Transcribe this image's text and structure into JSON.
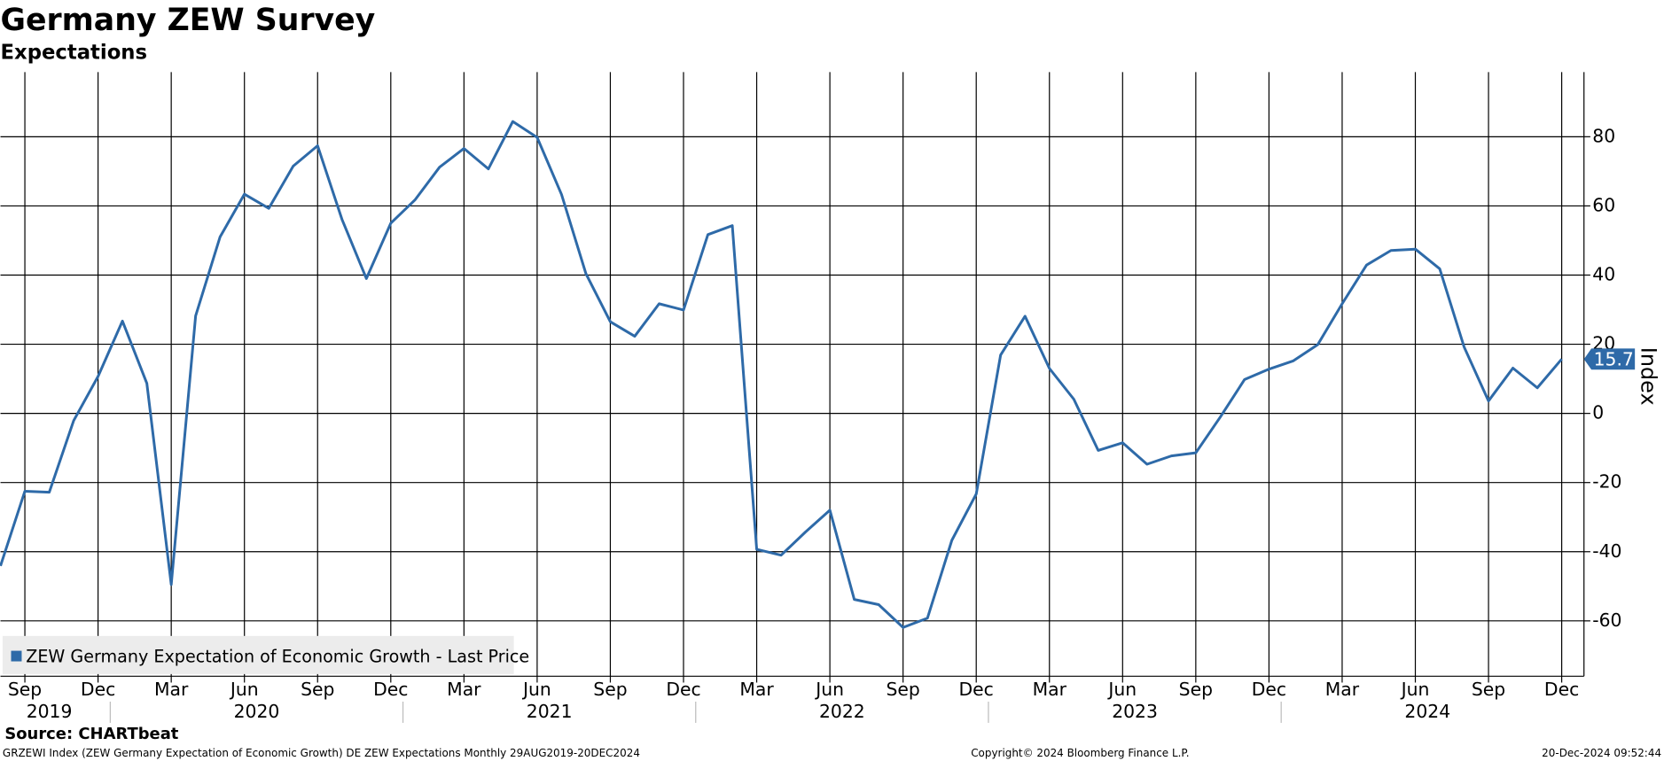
{
  "chart_data": {
    "type": "line",
    "title": "Germany ZEW Survey",
    "subtitle": "Expectations",
    "y_axis_label": "Index",
    "source": "Source: CHARTbeat",
    "footer_left": "GRZEWI Index (ZEW Germany Expectation of Economic Growth) DE ZEW Expectations  Monthly 29AUG2019-20DEC2024",
    "footer_center": "Copyright© 2024 Bloomberg Finance L.P.",
    "footer_right": "20-Dec-2024 09:52:44",
    "categories": [
      null,
      "Sep",
      null,
      null,
      "Dec",
      null,
      null,
      "Mar",
      null,
      null,
      "Jun",
      null,
      null,
      "Sep",
      null,
      null,
      "Dec",
      null,
      null,
      "Mar",
      null,
      null,
      "Jun",
      null,
      null,
      "Sep",
      null,
      null,
      "Dec",
      null,
      null,
      "Mar",
      null,
      null,
      "Jun",
      null,
      null,
      "Sep",
      null,
      null,
      "Dec",
      null,
      null,
      "Mar",
      null,
      null,
      "Jun",
      null,
      null,
      "Sep",
      null,
      null,
      "Dec",
      null,
      null,
      "Mar",
      null,
      null,
      "Jun",
      null,
      null,
      "Sep",
      null,
      null,
      "Dec"
    ],
    "years": [
      "2019",
      "2020",
      "2021",
      "2022",
      "2023",
      "2024"
    ],
    "series": [
      {
        "name": "ZEW Germany Expectation of Economic Growth - Last Price",
        "color": "#2e6aa8",
        "values": [
          -44.1,
          -22.5,
          -22.8,
          -2.1,
          10.7,
          26.7,
          8.7,
          -49.5,
          28.2,
          51.0,
          63.4,
          59.3,
          71.5,
          77.4,
          56.1,
          39.0,
          55.0,
          61.8,
          71.2,
          76.6,
          70.7,
          84.4,
          79.8,
          63.3,
          40.4,
          26.5,
          22.3,
          31.7,
          29.9,
          51.7,
          54.3,
          -39.3,
          -41.0,
          -34.3,
          -28.0,
          -53.8,
          -55.3,
          -61.9,
          -59.2,
          -36.7,
          -23.3,
          16.9,
          28.1,
          13.0,
          4.1,
          -10.7,
          -8.5,
          -14.7,
          -12.3,
          -11.4,
          -1.1,
          9.8,
          12.8,
          15.2,
          19.9,
          31.7,
          42.9,
          47.1,
          47.5,
          41.8,
          19.2,
          3.6,
          13.1,
          7.4,
          15.7
        ]
      }
    ],
    "ylim": [
      -76,
      98.7
    ],
    "yticks": [
      -60,
      -40,
      -20,
      0,
      20,
      40,
      60,
      80
    ],
    "grid": true,
    "legend": "bottom-left"
  }
}
